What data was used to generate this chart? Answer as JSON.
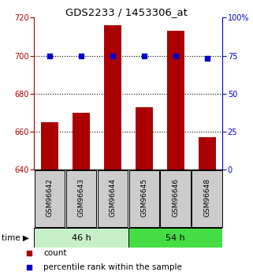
{
  "title": "GDS2233 / 1453306_at",
  "samples": [
    "GSM96642",
    "GSM96643",
    "GSM96644",
    "GSM96645",
    "GSM96646",
    "GSM96648"
  ],
  "counts": [
    665,
    670,
    716,
    673,
    713,
    657
  ],
  "percentiles": [
    75,
    75,
    75,
    75,
    75,
    73
  ],
  "groups": [
    "46 h",
    "54 h"
  ],
  "group_colors": [
    "#c8f0c8",
    "#44dd44"
  ],
  "bar_color": "#aa0000",
  "dot_color": "#0000cc",
  "ylim_left": [
    640,
    720
  ],
  "ylim_right": [
    0,
    100
  ],
  "yticks_left": [
    640,
    660,
    680,
    700,
    720
  ],
  "yticks_right": [
    0,
    25,
    50,
    75,
    100
  ],
  "background_color": "#ffffff",
  "label_bg": "#cccccc",
  "tick_fontsize": 7,
  "bar_width": 0.55
}
